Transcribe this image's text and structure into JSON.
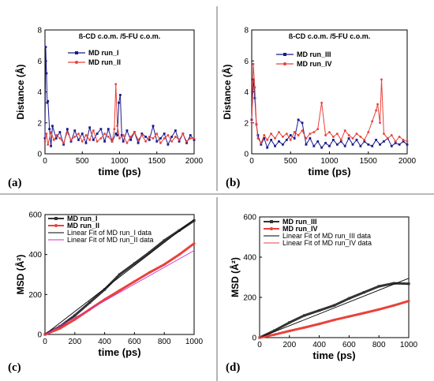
{
  "panels": [
    {
      "label": "(a)"
    },
    {
      "label": "(b)"
    },
    {
      "label": "(c)"
    },
    {
      "label": "(d)"
    }
  ],
  "chart_data": [
    {
      "panel": "(a)",
      "type": "line",
      "title": "ß-CD c.o.m. /5-FU c.o.m.",
      "xlabel": "time (ps)",
      "ylabel": "Distance (Å)",
      "xlim": [
        0,
        2000
      ],
      "ylim": [
        0,
        8
      ],
      "xticks": [
        0,
        500,
        1000,
        1500,
        2000
      ],
      "yticks": [
        0,
        2,
        4,
        6,
        8
      ],
      "legend_position": "upper-center",
      "series": [
        {
          "name": "MD run_I",
          "color": "#1a1a8c",
          "marker": "square",
          "x": [
            0,
            10,
            20,
            30,
            40,
            60,
            80,
            100,
            150,
            200,
            250,
            300,
            350,
            400,
            450,
            500,
            550,
            600,
            650,
            700,
            750,
            800,
            850,
            900,
            950,
            970,
            990,
            1010,
            1030,
            1050,
            1100,
            1150,
            1200,
            1250,
            1300,
            1350,
            1400,
            1450,
            1500,
            1550,
            1600,
            1650,
            1700,
            1750,
            1800,
            1850,
            1900,
            1950,
            2000
          ],
          "values": [
            1.0,
            6.9,
            5.2,
            3.3,
            3.4,
            1.6,
            0.5,
            1.8,
            1.0,
            1.4,
            0.6,
            1.6,
            0.8,
            1.5,
            0.9,
            1.3,
            0.7,
            1.7,
            0.9,
            1.3,
            1.6,
            0.8,
            1.6,
            0.8,
            1.3,
            1.2,
            3.3,
            3.8,
            1.2,
            0.8,
            1.5,
            0.9,
            1.4,
            0.7,
            1.3,
            1.1,
            0.9,
            1.8,
            0.8,
            1.0,
            1.3,
            0.6,
            1.1,
            1.5,
            0.8,
            1.3,
            0.7,
            1.2,
            0.9
          ]
        },
        {
          "name": "MD run_II",
          "color": "#e8423a",
          "marker": "circle",
          "x": [
            0,
            20,
            40,
            80,
            120,
            160,
            200,
            250,
            300,
            350,
            400,
            450,
            500,
            550,
            600,
            650,
            700,
            750,
            800,
            850,
            900,
            930,
            950,
            970,
            1000,
            1050,
            1100,
            1150,
            1200,
            1250,
            1300,
            1350,
            1400,
            1450,
            1500,
            1550,
            1600,
            1650,
            1700,
            1750,
            1800,
            1850,
            1900,
            1950,
            2000
          ],
          "values": [
            0.8,
            1.3,
            0.6,
            1.4,
            0.9,
            1.2,
            1.0,
            0.7,
            1.4,
            0.9,
            1.1,
            1.3,
            0.8,
            1.2,
            0.9,
            1.5,
            0.8,
            1.0,
            1.3,
            1.1,
            0.8,
            1.6,
            4.5,
            1.8,
            1.0,
            1.2,
            0.7,
            1.1,
            1.4,
            0.9,
            1.2,
            0.8,
            1.1,
            1.0,
            1.3,
            0.7,
            1.0,
            1.2,
            0.8,
            1.1,
            0.9,
            1.3,
            0.8,
            1.0,
            1.0
          ]
        }
      ]
    },
    {
      "panel": "(b)",
      "type": "line",
      "title": "ß-CD c.o.m. /5-FU c.o.m.",
      "xlabel": "time (ps)",
      "ylabel": "Distance (Å)",
      "xlim": [
        0,
        2000
      ],
      "ylim": [
        0,
        8
      ],
      "xticks": [
        0,
        500,
        1000,
        1500,
        2000
      ],
      "yticks": [
        0,
        2,
        4,
        6,
        8
      ],
      "legend_position": "upper-center",
      "series": [
        {
          "name": "MD run_III",
          "color": "#1a1a8c",
          "marker": "square",
          "x": [
            0,
            20,
            40,
            60,
            80,
            120,
            160,
            200,
            250,
            300,
            350,
            400,
            450,
            500,
            550,
            600,
            650,
            700,
            750,
            800,
            850,
            900,
            950,
            1000,
            1050,
            1100,
            1150,
            1200,
            1250,
            1300,
            1350,
            1400,
            1450,
            1500,
            1550,
            1600,
            1650,
            1700,
            1750,
            1800,
            1850,
            1900,
            1950,
            2000
          ],
          "values": [
            2.2,
            4.8,
            3.6,
            1.9,
            1.2,
            0.6,
            1.0,
            0.4,
            0.9,
            0.5,
            0.8,
            0.6,
            0.9,
            1.2,
            1.0,
            2.2,
            2.0,
            0.6,
            1.0,
            0.5,
            0.8,
            0.4,
            0.7,
            0.5,
            0.9,
            0.6,
            0.8,
            0.5,
            1.0,
            0.6,
            0.9,
            0.5,
            0.8,
            0.6,
            0.5,
            0.9,
            0.6,
            0.8,
            1.0,
            0.5,
            0.7,
            0.6,
            0.8,
            0.6
          ]
        },
        {
          "name": "MD run_IV",
          "color": "#e8423a",
          "marker": "circle",
          "x": [
            0,
            20,
            40,
            60,
            80,
            120,
            160,
            200,
            250,
            300,
            350,
            400,
            450,
            500,
            550,
            600,
            650,
            700,
            750,
            800,
            850,
            900,
            950,
            1000,
            1050,
            1100,
            1150,
            1200,
            1250,
            1300,
            1350,
            1400,
            1450,
            1500,
            1550,
            1600,
            1620,
            1650,
            1670,
            1700,
            1750,
            1800,
            1850,
            1900,
            1950,
            2000
          ],
          "values": [
            2.0,
            5.8,
            4.3,
            1.9,
            1.0,
            0.7,
            1.2,
            0.9,
            1.3,
            1.0,
            1.4,
            1.1,
            1.3,
            0.9,
            1.4,
            1.2,
            1.5,
            1.0,
            1.3,
            1.4,
            1.6,
            3.3,
            1.2,
            1.4,
            1.1,
            1.3,
            0.9,
            1.5,
            1.2,
            1.0,
            1.3,
            1.1,
            0.9,
            1.4,
            2.1,
            2.8,
            3.2,
            2.0,
            4.8,
            1.3,
            1.0,
            1.2,
            0.8,
            1.1,
            0.9,
            0.8
          ]
        }
      ]
    },
    {
      "panel": "(c)",
      "type": "line",
      "xlabel": "time (ps)",
      "ylabel": "MSD (Å²)",
      "xlim": [
        0,
        1000
      ],
      "ylim": [
        0,
        600
      ],
      "xticks": [
        0,
        200,
        400,
        600,
        800,
        1000
      ],
      "yticks": [
        0,
        200,
        400,
        600
      ],
      "legend_position": "top-left",
      "series": [
        {
          "name": "MD run_I",
          "color": "#333333",
          "marker": "square",
          "thick": true,
          "x": [
            0,
            100,
            200,
            300,
            400,
            500,
            600,
            700,
            800,
            900,
            1000
          ],
          "values": [
            0,
            40,
            95,
            160,
            225,
            300,
            355,
            410,
            470,
            520,
            570
          ]
        },
        {
          "name": "MD run_II",
          "color": "#e8423a",
          "marker": "circle",
          "thick": true,
          "x": [
            0,
            100,
            200,
            300,
            400,
            500,
            600,
            700,
            800,
            900,
            1000
          ],
          "values": [
            0,
            30,
            75,
            125,
            175,
            220,
            265,
            310,
            350,
            400,
            455
          ]
        },
        {
          "name": "Linear Fit of MD run_I data",
          "color": "#000000",
          "marker": "none",
          "thick": false,
          "x": [
            0,
            1000
          ],
          "values": [
            0,
            575
          ]
        },
        {
          "name": "Linear Fit of MD run_II data",
          "color": "#cc2ecc",
          "marker": "none",
          "thick": false,
          "x": [
            0,
            1000
          ],
          "values": [
            0,
            420
          ]
        }
      ]
    },
    {
      "panel": "(d)",
      "type": "line",
      "xlabel": "time (ps)",
      "ylabel": "MSD (Å²)",
      "xlim": [
        0,
        1000
      ],
      "ylim": [
        0,
        600
      ],
      "xticks": [
        0,
        200,
        400,
        600,
        800,
        1000
      ],
      "yticks": [
        0,
        200,
        400,
        600
      ],
      "legend_position": "top-left",
      "series": [
        {
          "name": "MD run_III",
          "color": "#333333",
          "marker": "square",
          "thick": true,
          "x": [
            0,
            100,
            200,
            300,
            400,
            500,
            600,
            700,
            800,
            900,
            1000
          ],
          "values": [
            0,
            35,
            75,
            110,
            135,
            160,
            195,
            225,
            255,
            270,
            268
          ]
        },
        {
          "name": "MD run_IV",
          "color": "#e8423a",
          "marker": "circle",
          "thick": true,
          "x": [
            0,
            100,
            200,
            300,
            400,
            500,
            600,
            700,
            800,
            900,
            1000
          ],
          "values": [
            0,
            15,
            33,
            50,
            68,
            88,
            105,
            122,
            140,
            160,
            182
          ]
        },
        {
          "name": "Linear Fit of MD run_III data",
          "color": "#000000",
          "marker": "none",
          "thick": false,
          "x": [
            0,
            1000
          ],
          "values": [
            0,
            295
          ]
        },
        {
          "name": "Linear Fit of MD run_IV data",
          "color": "#e8423a",
          "marker": "none",
          "thick": false,
          "x": [
            0,
            1000
          ],
          "values": [
            0,
            180
          ]
        }
      ]
    }
  ]
}
